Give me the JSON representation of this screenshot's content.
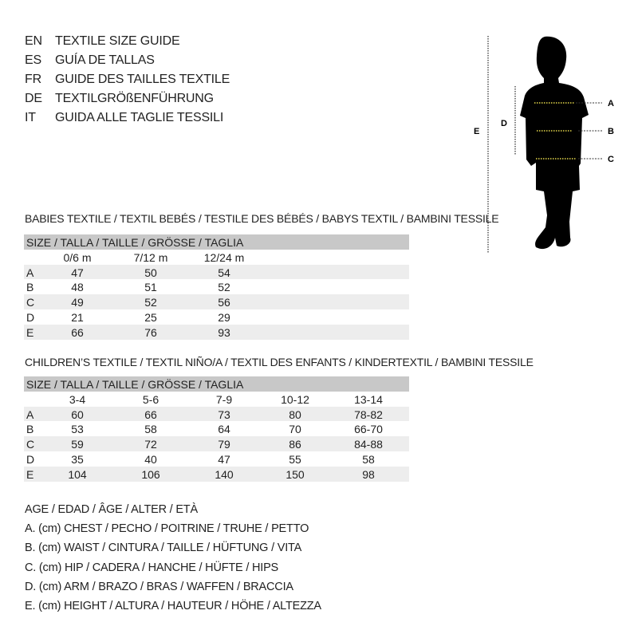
{
  "titles": [
    {
      "code": "EN",
      "text": "TEXTILE SIZE GUIDE"
    },
    {
      "code": "ES",
      "text": "GUÍA DE TALLAS"
    },
    {
      "code": "FR",
      "text": "GUIDE DES TAILLES TEXTILE"
    },
    {
      "code": "DE",
      "text": "TEXTILGRÖßENFÜHRUNG"
    },
    {
      "code": "IT",
      "text": "GUIDA ALLE TAGLIE TESSILI"
    }
  ],
  "figure": {
    "labels": {
      "a": "A",
      "b": "B",
      "c": "C",
      "d": "D",
      "e": "E"
    },
    "measure_color": "#e6d84a"
  },
  "babies": {
    "title": "BABIES TEXTILE / TEXTIL BEBÉS / TESTILE DES BÉBÉS / BABYS TEXTIL / BAMBINI TESSILE",
    "size_header": "SIZE / TALLA / TAILLE / GRÖSSE / TAGLIA",
    "columns": [
      "0/6 m",
      "7/12 m",
      "12/24 m"
    ],
    "rows": [
      {
        "label": "A",
        "values": [
          "47",
          "50",
          "54"
        ]
      },
      {
        "label": "B",
        "values": [
          "48",
          "51",
          "52"
        ]
      },
      {
        "label": "C",
        "values": [
          "49",
          "52",
          "56"
        ]
      },
      {
        "label": "D",
        "values": [
          "21",
          "25",
          "29"
        ]
      },
      {
        "label": "E",
        "values": [
          "66",
          "76",
          "93"
        ]
      }
    ]
  },
  "children": {
    "title": "CHILDREN’S TEXTILE / TEXTIL NIÑO/A / TEXTIL DES ENFANTS / KINDERTEXTIL / BAMBINI TESSILE",
    "size_header": "SIZE / TALLA / TAILLE / GRÖSSE / TAGLIA",
    "columns": [
      "3-4",
      "5-6",
      "7-9",
      "10-12",
      "13-14"
    ],
    "rows": [
      {
        "label": "A",
        "values": [
          "60",
          "66",
          "73",
          "80",
          "78-82"
        ]
      },
      {
        "label": "B",
        "values": [
          "53",
          "58",
          "64",
          "70",
          "66-70"
        ]
      },
      {
        "label": "C",
        "values": [
          "59",
          "72",
          "79",
          "86",
          "84-88"
        ]
      },
      {
        "label": "D",
        "values": [
          "35",
          "40",
          "47",
          "55",
          "58"
        ]
      },
      {
        "label": "E",
        "values": [
          "104",
          "106",
          "140",
          "150",
          "98"
        ]
      }
    ]
  },
  "legend": [
    "AGE / EDAD / ÂGE / ALTER / ETÀ",
    "A. (cm) CHEST / PECHO / POITRINE / TRUHE / PETTO",
    "B. (cm) WAIST / CINTURA / TAILLE / HÜFTUNG / VITA",
    "C. (cm) HIP / CADERA / HANCHE / HÜFTE / HIPS",
    "D. (cm) ARM / BRAZO / BRAS / WAFFEN / BRACCIA",
    "E. (cm) HEIGHT / ALTURA / HAUTEUR / HÖHE / ALTEZZA"
  ]
}
